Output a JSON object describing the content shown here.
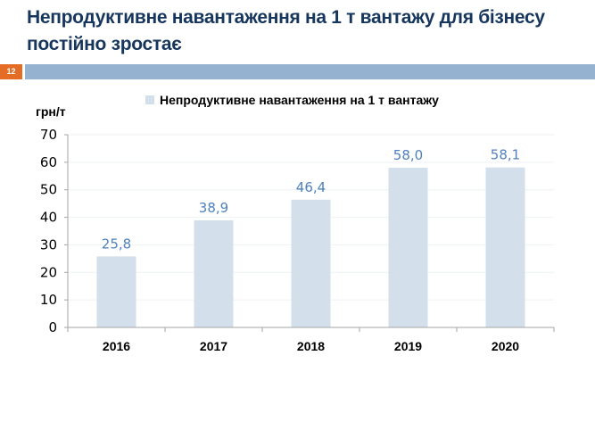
{
  "slide": {
    "title": "Непродуктивне навантаження на 1 т вантажу для бізнесу постійно зростає",
    "page_number": "12",
    "accent_color": "#E46C24",
    "band_color": "#95B3D0"
  },
  "chart_data": {
    "type": "bar",
    "title": "",
    "ylabel": "грн/т",
    "xlabel": "",
    "categories": [
      "2016",
      "2017",
      "2018",
      "2019",
      "2020"
    ],
    "series": [
      {
        "name": "Непродуктивне навантаження на 1 т вантажу",
        "values": [
          25.8,
          38.9,
          46.4,
          58.0,
          58.1
        ],
        "labels": [
          "25,8",
          "38,9",
          "46,4",
          "58,0",
          "58,1"
        ],
        "color": "#D3E0EB"
      }
    ],
    "ylim": [
      0,
      70
    ],
    "yticks": [
      0,
      10,
      20,
      30,
      40,
      50,
      60,
      70
    ],
    "grid": true,
    "legend": "top"
  }
}
